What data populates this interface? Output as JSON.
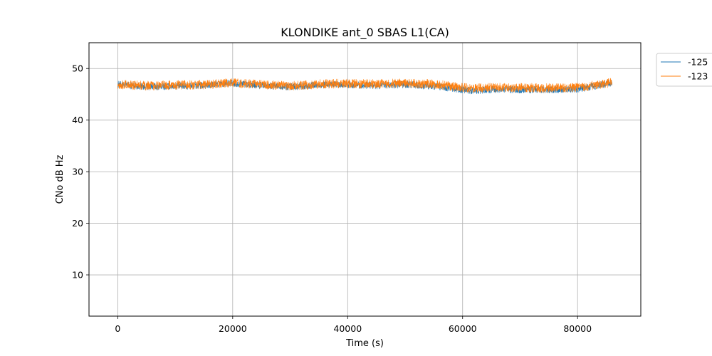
{
  "chart_data": {
    "type": "line",
    "title": "KLONDIKE ant_0 SBAS L1(CA)",
    "xlabel": "Time (s)",
    "ylabel": "CNo dB Hz",
    "xlim": [
      -5000,
      91000
    ],
    "ylim": [
      2,
      55
    ],
    "xticks": [
      0,
      20000,
      40000,
      60000,
      80000
    ],
    "xtick_labels": [
      "0",
      "20000",
      "40000",
      "60000",
      "80000"
    ],
    "yticks": [
      10,
      20,
      30,
      40,
      50
    ],
    "ytick_labels": [
      "10",
      "20",
      "30",
      "40",
      "50"
    ],
    "grid": true,
    "legend_position": "outside-top-right",
    "series": [
      {
        "name": "-125",
        "color": "#1f77b4",
        "x": [
          0,
          5000,
          10000,
          15000,
          20000,
          25000,
          30000,
          35000,
          40000,
          45000,
          50000,
          55000,
          60000,
          62000,
          65000,
          70000,
          75000,
          80000,
          85000,
          86000
        ],
        "y": [
          46.9,
          46.5,
          46.6,
          46.7,
          47.2,
          46.7,
          46.5,
          46.8,
          46.9,
          46.7,
          46.9,
          46.6,
          45.9,
          45.7,
          45.9,
          45.9,
          45.9,
          46.0,
          47.0,
          47.3
        ],
        "spread": 0.7
      },
      {
        "name": "-123",
        "color": "#ff7f0e",
        "x": [
          0,
          5000,
          10000,
          15000,
          20000,
          25000,
          30000,
          35000,
          40000,
          45000,
          50000,
          55000,
          60000,
          62000,
          65000,
          70000,
          75000,
          80000,
          85000,
          86000
        ],
        "y": [
          46.9,
          46.7,
          46.8,
          46.9,
          47.2,
          46.9,
          46.6,
          47.0,
          47.1,
          47.0,
          47.2,
          47.0,
          46.3,
          46.2,
          46.3,
          46.3,
          46.2,
          46.3,
          47.1,
          47.4
        ],
        "spread": 0.9
      }
    ]
  }
}
